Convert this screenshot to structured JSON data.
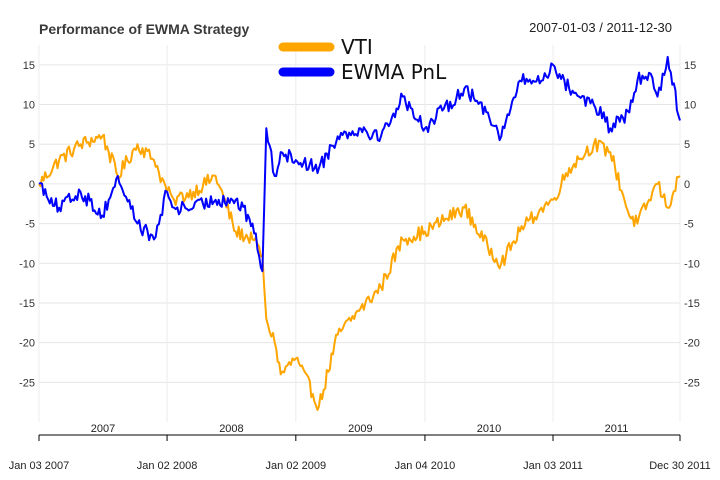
{
  "chart_data": {
    "type": "line",
    "title": "Performance of EWMA Strategy",
    "date_range": "2007-01-03 / 2011-12-30",
    "ylim": [
      -30,
      17.5
    ],
    "y_ticks": [
      15,
      10,
      5,
      0,
      -5,
      -10,
      -15,
      -20,
      -25
    ],
    "grid": true,
    "legend_position": "top-center",
    "year_labels": [
      "2007",
      "2008",
      "2009",
      "2010",
      "2011"
    ],
    "x_tick_labels": [
      "Jan 03 2007",
      "Jan 02 2008",
      "Jan 02 2009",
      "Jan 04 2010",
      "Jan 03 2011",
      "Dec 30 2011"
    ],
    "x_dates": [
      "2007-01-03",
      "2007-03-01",
      "2007-05-01",
      "2007-07-02",
      "2007-07-20",
      "2007-08-15",
      "2007-10-10",
      "2007-11-26",
      "2008-01-02",
      "2008-01-22",
      "2008-03-17",
      "2008-05-19",
      "2008-07-15",
      "2008-09-01",
      "2008-09-29",
      "2008-10-10",
      "2008-11-03",
      "2008-11-20",
      "2009-01-02",
      "2009-03-09",
      "2009-05-01",
      "2009-07-01",
      "2009-09-01",
      "2009-11-02",
      "2010-01-04",
      "2010-04-26",
      "2010-07-02",
      "2010-08-09",
      "2010-10-01",
      "2010-12-01",
      "2011-01-03",
      "2011-02-18",
      "2011-04-29",
      "2011-06-15",
      "2011-08-08",
      "2011-08-31",
      "2011-10-03",
      "2011-10-27",
      "2011-11-25",
      "2011-12-30"
    ],
    "series": [
      {
        "name": "VTI",
        "color": "#FFA500",
        "values": [
          0,
          3,
          5,
          6,
          4,
          1,
          5,
          3,
          -1,
          -2,
          -1,
          1,
          -6,
          -7,
          -9,
          -17,
          -20,
          -24,
          -22,
          -28,
          -19,
          -16,
          -13,
          -7,
          -6,
          -3,
          -8,
          -10,
          -6,
          -3,
          -2,
          2,
          5,
          4,
          -4,
          -5,
          -2,
          0,
          -3,
          1
        ]
      },
      {
        "name": "EWMA PnL",
        "color": "#0000FF",
        "values": [
          0,
          -3,
          -1,
          -4,
          -2,
          1,
          -5,
          -7,
          -1,
          -3,
          -3,
          -2,
          -2,
          -5,
          -11,
          7,
          1,
          4,
          3,
          2,
          6,
          7,
          6,
          11,
          7,
          12,
          9,
          6,
          13,
          13,
          15,
          12,
          10,
          7,
          9,
          13,
          14,
          11,
          16,
          8
        ]
      }
    ]
  }
}
